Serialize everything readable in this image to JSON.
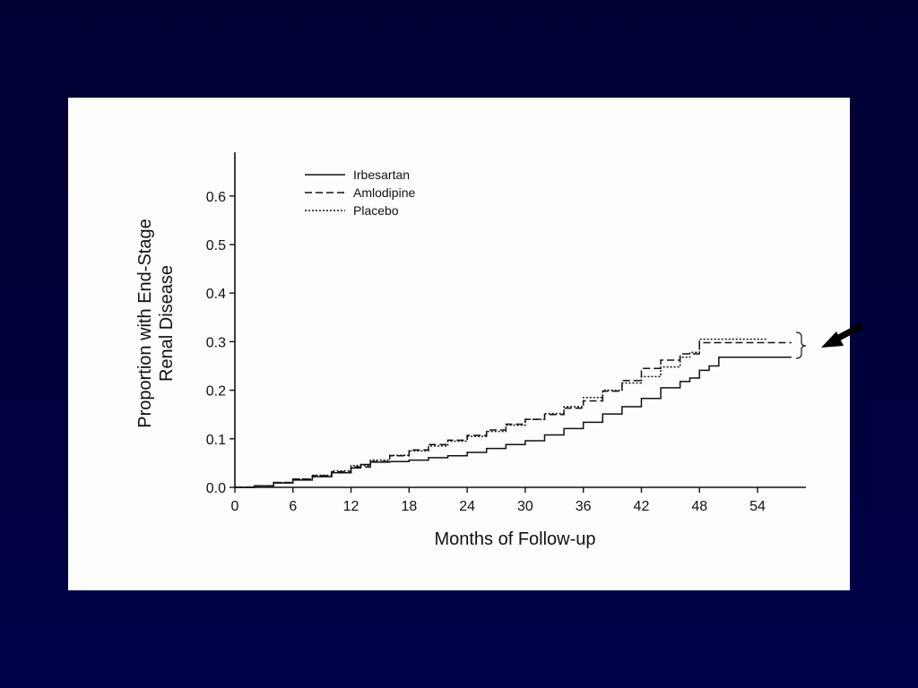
{
  "chart_data": {
    "type": "line",
    "xlabel": "Months of Follow-up",
    "ylabel": "Proportion with End-Stage Renal Disease",
    "ylabel_lines": [
      "Proportion with End-Stage",
      "Renal Disease"
    ],
    "xlim": [
      0,
      59
    ],
    "ylim": [
      0,
      0.69
    ],
    "x_ticks": [
      0,
      6,
      12,
      18,
      24,
      30,
      36,
      42,
      48,
      54
    ],
    "y_ticks": [
      0.0,
      0.1,
      0.2,
      0.3,
      0.4,
      0.5,
      0.6
    ],
    "y_tick_labels": [
      "0.0",
      "0.1",
      "0.2",
      "0.3",
      "0.4",
      "0.5",
      "0.6"
    ],
    "grid": false,
    "legend_position": "top-left",
    "series": [
      {
        "name": "Irbesartan",
        "style": "solid",
        "x": [
          0,
          2,
          4,
          6,
          8,
          10,
          12,
          13,
          14,
          16,
          18,
          20,
          22,
          24,
          26,
          28,
          30,
          32,
          34,
          36,
          38,
          40,
          42,
          44,
          46,
          47,
          48,
          49,
          50,
          52,
          54,
          56,
          57.5
        ],
        "y": [
          0,
          0.003,
          0.009,
          0.015,
          0.022,
          0.03,
          0.04,
          0.047,
          0.052,
          0.053,
          0.056,
          0.061,
          0.065,
          0.072,
          0.08,
          0.088,
          0.096,
          0.108,
          0.121,
          0.134,
          0.151,
          0.166,
          0.183,
          0.205,
          0.218,
          0.225,
          0.241,
          0.25,
          0.268,
          0.268,
          0.268,
          0.268,
          0.268
        ]
      },
      {
        "name": "Amlodipine",
        "style": "dashed",
        "x": [
          0,
          2,
          4,
          6,
          8,
          10,
          12,
          14,
          16,
          18,
          20,
          22,
          24,
          26,
          28,
          30,
          32,
          34,
          36,
          38,
          40,
          42,
          44,
          46,
          47,
          48,
          50,
          52,
          54,
          56,
          57.5
        ],
        "y": [
          0,
          0.003,
          0.01,
          0.017,
          0.024,
          0.032,
          0.042,
          0.053,
          0.065,
          0.077,
          0.088,
          0.097,
          0.107,
          0.118,
          0.13,
          0.14,
          0.15,
          0.163,
          0.178,
          0.198,
          0.22,
          0.245,
          0.262,
          0.275,
          0.275,
          0.298,
          0.298,
          0.298,
          0.298,
          0.298,
          0.298
        ]
      },
      {
        "name": "Placebo",
        "style": "dotted",
        "x": [
          0,
          2,
          4,
          6,
          8,
          10,
          12,
          14,
          16,
          18,
          20,
          22,
          24,
          26,
          28,
          30,
          32,
          34,
          36,
          38,
          40,
          42,
          44,
          46,
          47,
          48,
          50,
          52,
          54,
          55
        ],
        "y": [
          0,
          0.003,
          0.01,
          0.017,
          0.025,
          0.034,
          0.045,
          0.056,
          0.066,
          0.075,
          0.085,
          0.095,
          0.105,
          0.115,
          0.128,
          0.14,
          0.152,
          0.166,
          0.185,
          0.2,
          0.215,
          0.228,
          0.248,
          0.268,
          0.278,
          0.305,
          0.305,
          0.305,
          0.305,
          0.305
        ]
      }
    ],
    "annotation": "arrow pointing at Amlodipine and Placebo curves"
  },
  "colors": {
    "background": "#000038",
    "panel": "#fdfdfb",
    "ink": "#111111",
    "arrow": "#000000"
  }
}
